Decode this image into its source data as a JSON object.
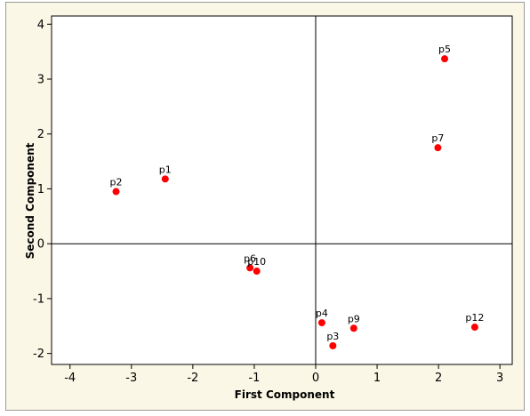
{
  "chart_data": {
    "type": "scatter",
    "title": "",
    "xlabel": "First Component",
    "ylabel": "Second Component",
    "xlim": [
      -4.3,
      3.2
    ],
    "ylim": [
      -2.2,
      4.15
    ],
    "xticks": [
      -4,
      -3,
      -2,
      -1,
      0,
      1,
      2,
      3
    ],
    "yticks": [
      -2,
      -1,
      0,
      1,
      2,
      3,
      4
    ],
    "reference_lines": {
      "x": 0,
      "y": 0
    },
    "grid": false,
    "marker_color": "#ff0000",
    "points": [
      {
        "label": "p1",
        "x": -2.45,
        "y": 1.18
      },
      {
        "label": "p2",
        "x": -3.25,
        "y": 0.95
      },
      {
        "label": "p3",
        "x": 0.28,
        "y": -1.86
      },
      {
        "label": "p4",
        "x": 0.1,
        "y": -1.44
      },
      {
        "label": "p5",
        "x": 2.1,
        "y": 3.37
      },
      {
        "label": "p6",
        "x": -1.07,
        "y": -0.44
      },
      {
        "label": "p7",
        "x": 1.99,
        "y": 1.75
      },
      {
        "label": "p9",
        "x": 0.62,
        "y": -1.54
      },
      {
        "label": "p10",
        "x": -0.96,
        "y": -0.5
      },
      {
        "label": "p12",
        "x": 2.59,
        "y": -1.52
      }
    ]
  }
}
